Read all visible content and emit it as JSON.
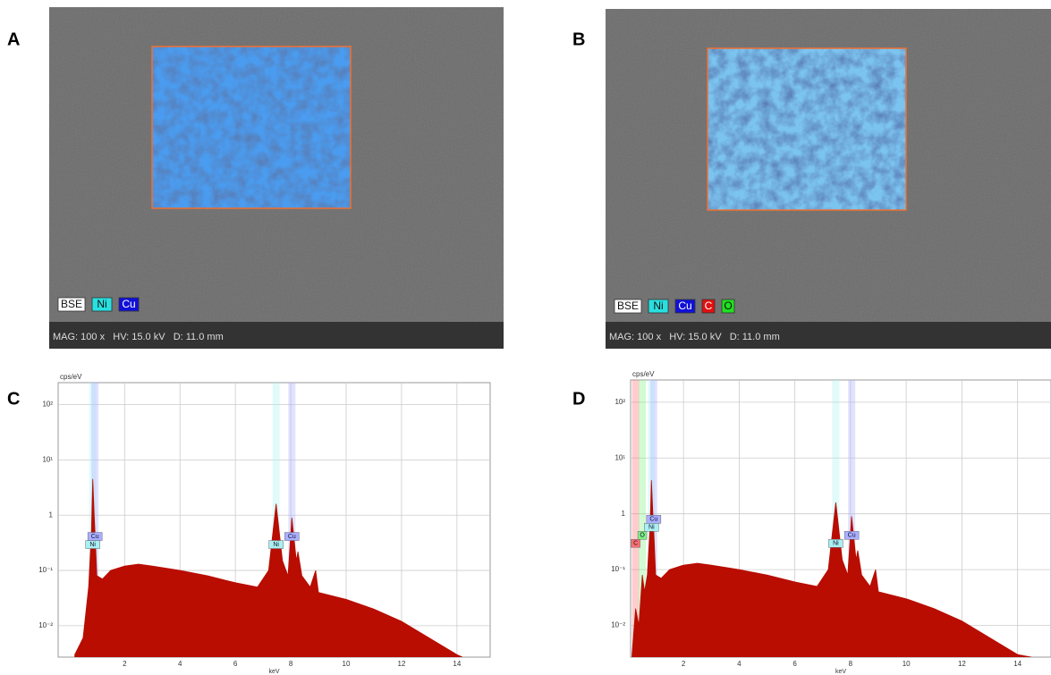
{
  "figure": {
    "panels": [
      {
        "label": "A",
        "legend": [
          {
            "text": "BSE",
            "color": "#ffffff"
          },
          {
            "text": "Ni",
            "color": "#29e0e0"
          },
          {
            "text": "Cu",
            "color": "#1010d8"
          }
        ],
        "info": "MAG: 100 x   HV: 15.0 kV   D: 11.0 mm",
        "map_color": "#4a9cf0"
      },
      {
        "label": "B",
        "legend": [
          {
            "text": "BSE",
            "color": "#ffffff"
          },
          {
            "text": "Ni",
            "color": "#29e0e0"
          },
          {
            "text": "Cu",
            "color": "#1010d8"
          },
          {
            "text": "C",
            "color": "#e01010"
          },
          {
            "text": "O",
            "color": "#20e020"
          }
        ],
        "info": "MAG: 100 x   HV: 15.0 kV   D: 11.0 mm",
        "map_color": "#7cc4f0"
      },
      {
        "label": "C"
      },
      {
        "label": "D"
      }
    ]
  },
  "chart_data": [
    {
      "type": "area",
      "log_y": true,
      "grid": true,
      "color": "#b80d00",
      "ylabel": "cps/eV",
      "xlabel": "keV",
      "x": [
        0.2,
        0.5,
        0.7,
        0.8,
        0.85,
        0.9,
        0.95,
        1.0,
        1.2,
        1.5,
        2,
        2.5,
        3,
        4,
        5,
        6,
        6.8,
        7.2,
        7.47,
        7.7,
        7.9,
        8.04,
        8.2,
        8.26,
        8.4,
        8.7,
        8.9,
        9.0,
        10,
        11,
        12,
        13,
        14,
        14.2
      ],
      "values": [
        0.003,
        0.006,
        0.05,
        0.5,
        4.5,
        1.0,
        0.3,
        0.08,
        0.07,
        0.1,
        0.12,
        0.13,
        0.12,
        0.1,
        0.08,
        0.06,
        0.05,
        0.1,
        1.6,
        0.15,
        0.08,
        0.9,
        0.15,
        0.22,
        0.08,
        0.05,
        0.1,
        0.04,
        0.03,
        0.02,
        0.012,
        0.006,
        0.003,
        0.0027
      ],
      "xlim": [
        -0.4,
        15.2
      ],
      "ylim": [
        0.0027,
        250
      ],
      "xticks": [
        2,
        4,
        6,
        8,
        10,
        12,
        14
      ],
      "yticks": [
        {
          "value": 100,
          "label": "10²"
        },
        {
          "value": 10,
          "label": "10¹"
        },
        1,
        {
          "value": 0.1,
          "label": "10⁻¹"
        },
        {
          "value": 0.01,
          "label": "10⁻²"
        }
      ],
      "annotations": [
        {
          "label": "Ni",
          "x": 0.85,
          "color": "#aaf0f0"
        },
        {
          "label": "Cu",
          "x": 0.93,
          "color": "#aab0ff"
        },
        {
          "label": "Ni",
          "x": 7.47,
          "color": "#aaf0f0"
        },
        {
          "label": "Cu",
          "x": 8.04,
          "color": "#aab0ff"
        }
      ]
    },
    {
      "type": "area",
      "log_y": true,
      "grid": true,
      "color": "#b80d00",
      "ylabel": "cps/eV",
      "xlabel": "keV",
      "x": [
        0.15,
        0.28,
        0.4,
        0.52,
        0.6,
        0.7,
        0.8,
        0.85,
        0.9,
        0.95,
        1.0,
        1.2,
        1.5,
        2,
        2.5,
        3,
        4,
        5,
        6,
        6.8,
        7.2,
        7.47,
        7.7,
        7.9,
        8.04,
        8.2,
        8.26,
        8.4,
        8.7,
        8.9,
        9.0,
        10,
        11,
        12,
        13,
        14,
        14.5
      ],
      "values": [
        0.003,
        0.02,
        0.01,
        0.08,
        0.04,
        0.08,
        0.6,
        4.0,
        1.0,
        0.3,
        0.08,
        0.07,
        0.1,
        0.12,
        0.13,
        0.12,
        0.1,
        0.08,
        0.06,
        0.05,
        0.1,
        1.6,
        0.15,
        0.08,
        0.9,
        0.15,
        0.22,
        0.08,
        0.05,
        0.1,
        0.04,
        0.03,
        0.02,
        0.012,
        0.006,
        0.003,
        0.0027
      ],
      "xlim": [
        0.1,
        15.2
      ],
      "ylim": [
        0.0027,
        250
      ],
      "xticks": [
        2,
        4,
        6,
        8,
        10,
        12,
        14
      ],
      "yticks": [
        {
          "value": 100,
          "label": "10²"
        },
        {
          "value": 10,
          "label": "10¹"
        },
        1,
        {
          "value": 0.1,
          "label": "10⁻¹"
        },
        {
          "value": 0.01,
          "label": "10⁻²"
        }
      ],
      "annotations": [
        {
          "label": "C",
          "x": 0.28,
          "color": "#ff7070"
        },
        {
          "label": "O",
          "x": 0.52,
          "color": "#80f080"
        },
        {
          "label": "Ni",
          "x": 0.85,
          "color": "#aaf0f0"
        },
        {
          "label": "Cu",
          "x": 0.93,
          "color": "#aab0ff"
        },
        {
          "label": "Ni",
          "x": 7.47,
          "color": "#aaf0f0"
        },
        {
          "label": "Cu",
          "x": 8.04,
          "color": "#aab0ff"
        }
      ]
    }
  ]
}
